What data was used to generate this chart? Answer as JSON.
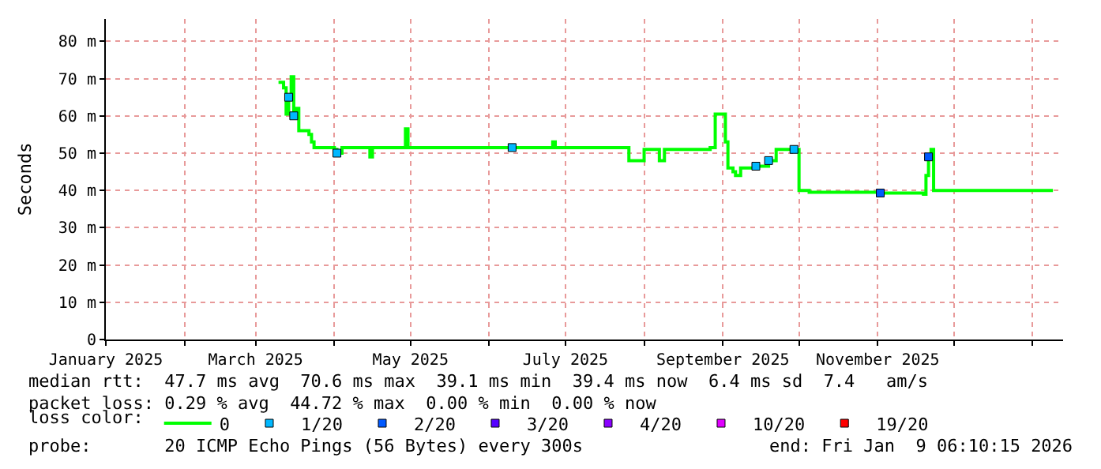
{
  "chart_data": {
    "type": "step",
    "ylabel": "Seconds",
    "xlim": [
      "2025-01-01",
      "2026-01-13"
    ],
    "xticks": [
      {
        "value": "2025-01-01",
        "label": "January 2025"
      },
      {
        "value": "2025-02-01",
        "label": null
      },
      {
        "value": "2025-03-01",
        "label": "March 2025"
      },
      {
        "value": "2025-04-01",
        "label": null
      },
      {
        "value": "2025-05-01",
        "label": "May 2025"
      },
      {
        "value": "2025-06-01",
        "label": null
      },
      {
        "value": "2025-07-01",
        "label": "July 2025"
      },
      {
        "value": "2025-08-01",
        "label": null
      },
      {
        "value": "2025-09-01",
        "label": "September 2025"
      },
      {
        "value": "2025-10-01",
        "label": null
      },
      {
        "value": "2025-11-01",
        "label": "November 2025"
      },
      {
        "value": "2025-12-01",
        "label": null
      },
      {
        "value": "2026-01-01",
        "label": null
      }
    ],
    "ylim": [
      0,
      86
    ],
    "yticks": [
      0,
      {
        "value": 10,
        "label": "10 m"
      },
      {
        "value": 20,
        "label": "20 m"
      },
      {
        "value": 30,
        "label": "30 m"
      },
      {
        "value": 40,
        "label": "40 m"
      },
      {
        "value": 50,
        "label": "50 m"
      },
      {
        "value": 60,
        "label": "60 m"
      },
      {
        "value": 70,
        "label": "70 m"
      },
      {
        "value": 80,
        "label": "80 m"
      }
    ],
    "grid": true,
    "legend": "bottom",
    "legend_title": "loss color:",
    "series": [
      {
        "name": "0",
        "color": "#00ff00",
        "x": [
          "2025-03-10",
          "2025-03-12",
          "2025-03-13",
          "2025-03-14",
          "2025-03-15",
          "2025-03-16",
          "2025-03-17",
          "2025-03-18",
          "2025-03-22",
          "2025-03-23",
          "2025-03-24",
          "2025-04-01",
          "2025-04-02",
          "2025-04-04",
          "2025-04-14",
          "2025-04-15",
          "2025-04-16",
          "2025-04-28",
          "2025-04-29",
          "2025-04-30",
          "2025-06-25",
          "2025-06-26",
          "2025-06-27",
          "2025-07-24",
          "2025-07-26",
          "2025-07-29",
          "2025-08-01",
          "2025-08-04",
          "2025-08-07",
          "2025-08-09",
          "2025-08-27",
          "2025-08-29",
          "2025-09-01",
          "2025-09-02",
          "2025-09-03",
          "2025-09-05",
          "2025-09-06",
          "2025-09-08",
          "2025-09-14",
          "2025-09-19",
          "2025-09-22",
          "2025-09-29",
          "2025-10-01",
          "2025-10-05",
          "2025-11-02",
          "2025-11-19",
          "2025-11-20",
          "2025-11-21",
          "2025-11-22",
          "2025-11-23",
          "2025-12-01",
          "2026-01-09"
        ],
        "values": [
          69,
          67.5,
          60.5,
          65,
          70.5,
          60,
          62,
          56,
          55,
          53,
          51.5,
          51,
          50,
          51.5,
          51.5,
          49,
          51.5,
          51.5,
          56.5,
          51.5,
          51.5,
          53,
          51.5,
          51.5,
          48,
          48,
          51,
          51,
          48,
          51,
          51.5,
          60.5,
          60.5,
          53,
          46,
          45,
          44,
          46,
          46.5,
          48,
          51,
          51,
          40,
          39.5,
          39.3,
          39,
          44,
          49,
          51,
          40,
          40,
          40
        ]
      },
      {
        "name": "1/20",
        "color": "#00b8ff",
        "type": "scatter",
        "marker": "square",
        "x": [
          "2025-03-14",
          "2025-03-16",
          "2025-04-02",
          "2025-06-10",
          "2025-09-14",
          "2025-09-19",
          "2025-09-29"
        ],
        "values": [
          65,
          60,
          50,
          51.5,
          46.5,
          48,
          51
        ]
      },
      {
        "name": "2/20",
        "color": "#0059ff",
        "type": "scatter",
        "marker": "square",
        "x": [
          "2025-11-02",
          "2025-11-21"
        ],
        "values": [
          39.3,
          49
        ]
      },
      {
        "name": "3/20",
        "color": "#5500ff",
        "type": "scatter",
        "marker": "square"
      },
      {
        "name": "4/20",
        "color": "#8a00ff",
        "type": "scatter",
        "marker": "square"
      },
      {
        "name": "10/20",
        "color": "#e000ff",
        "type": "scatter",
        "marker": "square"
      },
      {
        "name": "19/20",
        "color": "#ff0000",
        "type": "scatter",
        "marker": "square"
      }
    ],
    "annotations": [
      "median rtt:  47.7 ms avg  70.6 ms max  39.1 ms min  39.4 ms now  6.4 ms sd  7.4   am/s",
      "packet loss: 0.29 % avg  44.72 % max  0.00 % min  0.00 % now",
      "probe:       20 ICMP Echo Pings (56 Bytes) every 300s",
      "end: Fri Jan  9 06:10:15 2026"
    ]
  }
}
